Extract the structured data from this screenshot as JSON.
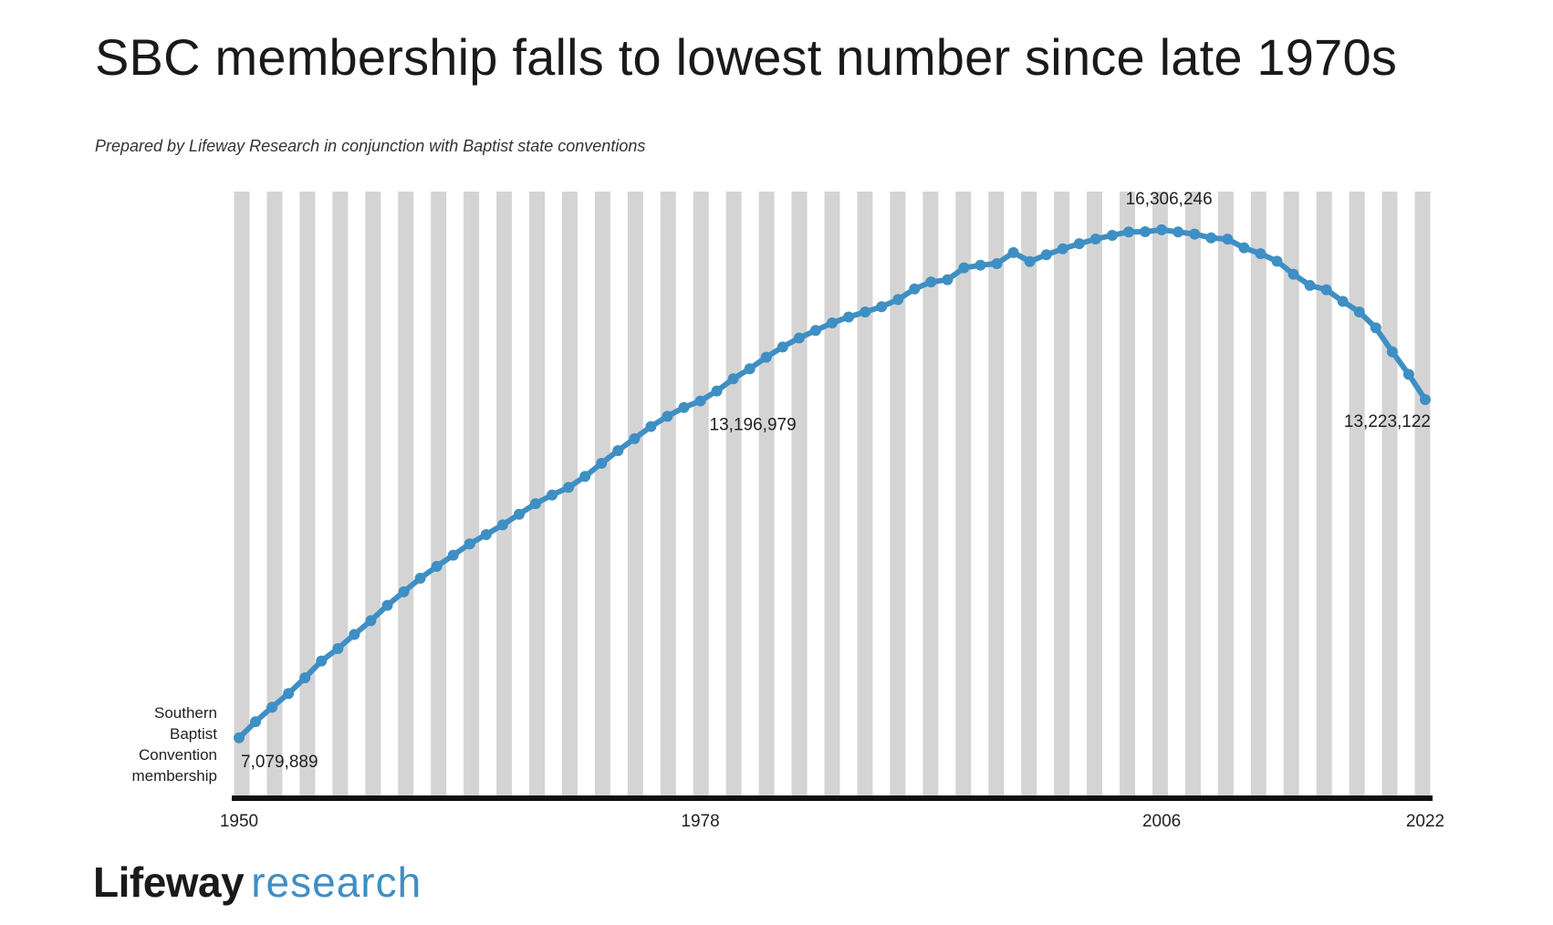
{
  "header": {
    "title": "SBC membership falls to lowest number since late 1970s",
    "subtitle": "Prepared by Lifeway Research in conjunction with Baptist state conventions"
  },
  "brand": {
    "name": "Lifeway",
    "division": "research",
    "division_color": "#3e8fc4"
  },
  "colors": {
    "line": "#3e8fc4",
    "stripe": "#d4d4d4",
    "axis": "#111111"
  },
  "chart_data": {
    "type": "line",
    "title": "SBC membership falls to lowest number since late 1970s",
    "ylabel_lines": [
      "Southern",
      "Baptist",
      "Convention",
      "membership"
    ],
    "xlabel": "",
    "xlim": [
      1950,
      2022
    ],
    "ylim": [
      6000000,
      17000000
    ],
    "grid": false,
    "x_ticks": [
      1950,
      1978,
      2006,
      2022
    ],
    "x_tick_labels": [
      "1950",
      "1978",
      "2006",
      "2022"
    ],
    "series": [
      {
        "name": "Southern Baptist Convention membership",
        "x": [
          1950,
          1951,
          1952,
          1953,
          1954,
          1955,
          1956,
          1957,
          1958,
          1959,
          1960,
          1961,
          1962,
          1963,
          1964,
          1965,
          1966,
          1967,
          1968,
          1969,
          1970,
          1971,
          1972,
          1973,
          1974,
          1975,
          1976,
          1977,
          1978,
          1979,
          1980,
          1981,
          1982,
          1983,
          1984,
          1985,
          1986,
          1987,
          1988,
          1989,
          1990,
          1991,
          1992,
          1993,
          1994,
          1995,
          1996,
          1997,
          1998,
          1999,
          2000,
          2001,
          2002,
          2003,
          2004,
          2005,
          2006,
          2007,
          2008,
          2009,
          2010,
          2011,
          2012,
          2013,
          2014,
          2015,
          2016,
          2017,
          2018,
          2019,
          2020,
          2021,
          2022
        ],
        "values": [
          7079889,
          7373498,
          7634493,
          7883708,
          8169491,
          8474741,
          8700481,
          8956756,
          9206758,
          9485276,
          9731591,
          9978139,
          10193052,
          10395940,
          10601515,
          10770573,
          10947389,
          11140010,
          11332229,
          11489613,
          11628032,
          11826463,
          12065333,
          12295400,
          12513378,
          12733124,
          12917992,
          13078239,
          13196979,
          13379073,
          13600126,
          13782644,
          13991709,
          14178051,
          14341822,
          14477364,
          14613638,
          14722617,
          14812844,
          14907826,
          15038409,
          15232347,
          15358866,
          15398642,
          15614060,
          15663296,
          15691964,
          15891514,
          15729356,
          15851756,
          15960308,
          16052920,
          16137736,
          16205050,
          16267494,
          16270315,
          16306246,
          16266920,
          16228438,
          16160088,
          16136044,
          15978112,
          15872404,
          15735640,
          15499173,
          15294764,
          15216978,
          15005638,
          14813234,
          14525579,
          14089947,
          13680493,
          13223122
        ]
      }
    ],
    "annotations": [
      {
        "x": 1950,
        "label": "7,079,889"
      },
      {
        "x": 1978,
        "label": "13,196,979"
      },
      {
        "x": 2006,
        "label": "16,306,246"
      },
      {
        "x": 2022,
        "label": "13,223,122"
      }
    ]
  }
}
